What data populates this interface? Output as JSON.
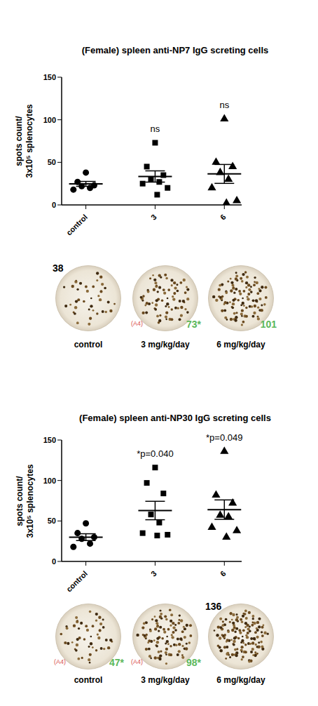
{
  "chart_data": [
    {
      "type": "scatter",
      "title": "(Female) spleen anti-NP7 IgG screting cells",
      "ylabel": "spots count/ 3x10⁵ splenocytes",
      "categories": [
        "control",
        "3",
        "6"
      ],
      "ylim": [
        0,
        150
      ],
      "yticks": [
        0,
        50,
        100,
        150
      ],
      "grid": false,
      "groups": [
        {
          "marker": "circle",
          "color": "#000000",
          "values": [
            38,
            27,
            23,
            22,
            20,
            18
          ],
          "mean": 24.7,
          "sem": 2.9
        },
        {
          "marker": "square",
          "color": "#000000",
          "values": [
            73,
            45,
            35,
            30,
            27,
            25,
            20,
            12
          ],
          "mean": 33.4,
          "sem": 6.6
        },
        {
          "marker": "triangle",
          "color": "#000000",
          "values": [
            101,
            50,
            45,
            38,
            30,
            20,
            5,
            2
          ],
          "mean": 36.4,
          "sem": 11.1
        }
      ],
      "annotations": [
        {
          "category": "3",
          "text": "ns"
        },
        {
          "category": "6",
          "text": "ns"
        }
      ],
      "wells": [
        {
          "caption": "control",
          "spots": 38,
          "label": "38",
          "color": "#000000"
        },
        {
          "caption": "3 mg/kg/day",
          "spots": 73,
          "label": "73*",
          "color": "#5cb85c",
          "tag": "(A4)",
          "tag_color": "#d9534f"
        },
        {
          "caption": "6 mg/kg/day",
          "spots": 101,
          "label": "101",
          "color": "#5cb85c"
        }
      ]
    },
    {
      "type": "scatter",
      "title": "(Female) spleen anti-NP30 IgG screting cells",
      "ylabel": "spots count/ 3x10⁵ splenocytes",
      "categories": [
        "control",
        "3",
        "6"
      ],
      "ylim": [
        0,
        150
      ],
      "yticks": [
        0,
        50,
        100,
        150
      ],
      "grid": false,
      "groups": [
        {
          "marker": "circle",
          "color": "#000000",
          "values": [
            47,
            35,
            30,
            28,
            22,
            18
          ],
          "mean": 30,
          "sem": 4.2
        },
        {
          "marker": "square",
          "color": "#000000",
          "values": [
            116,
            97,
            84,
            58,
            48,
            35,
            33,
            32
          ],
          "mean": 62.9,
          "sem": 11.4
        },
        {
          "marker": "triangle",
          "color": "#000000",
          "values": [
            136,
            82,
            72,
            57,
            55,
            42,
            38,
            30
          ],
          "mean": 64,
          "sem": 12
        }
      ],
      "annotations": [
        {
          "category": "3",
          "text": "*p=0.040"
        },
        {
          "category": "6",
          "text": "*p=0.049"
        }
      ],
      "wells": [
        {
          "caption": "control",
          "spots": 47,
          "label": "47*",
          "color": "#5cb85c",
          "tag": "(A4)",
          "tag_color": "#d9534f"
        },
        {
          "caption": "3 mg/kg/day",
          "spots": 98,
          "label": "98*",
          "color": "#5cb85c",
          "tag": "(A4)",
          "tag_color": "#d9534f"
        },
        {
          "caption": "6 mg/kg/day",
          "spots": 136,
          "label": "136",
          "color": "#000000"
        }
      ]
    }
  ]
}
